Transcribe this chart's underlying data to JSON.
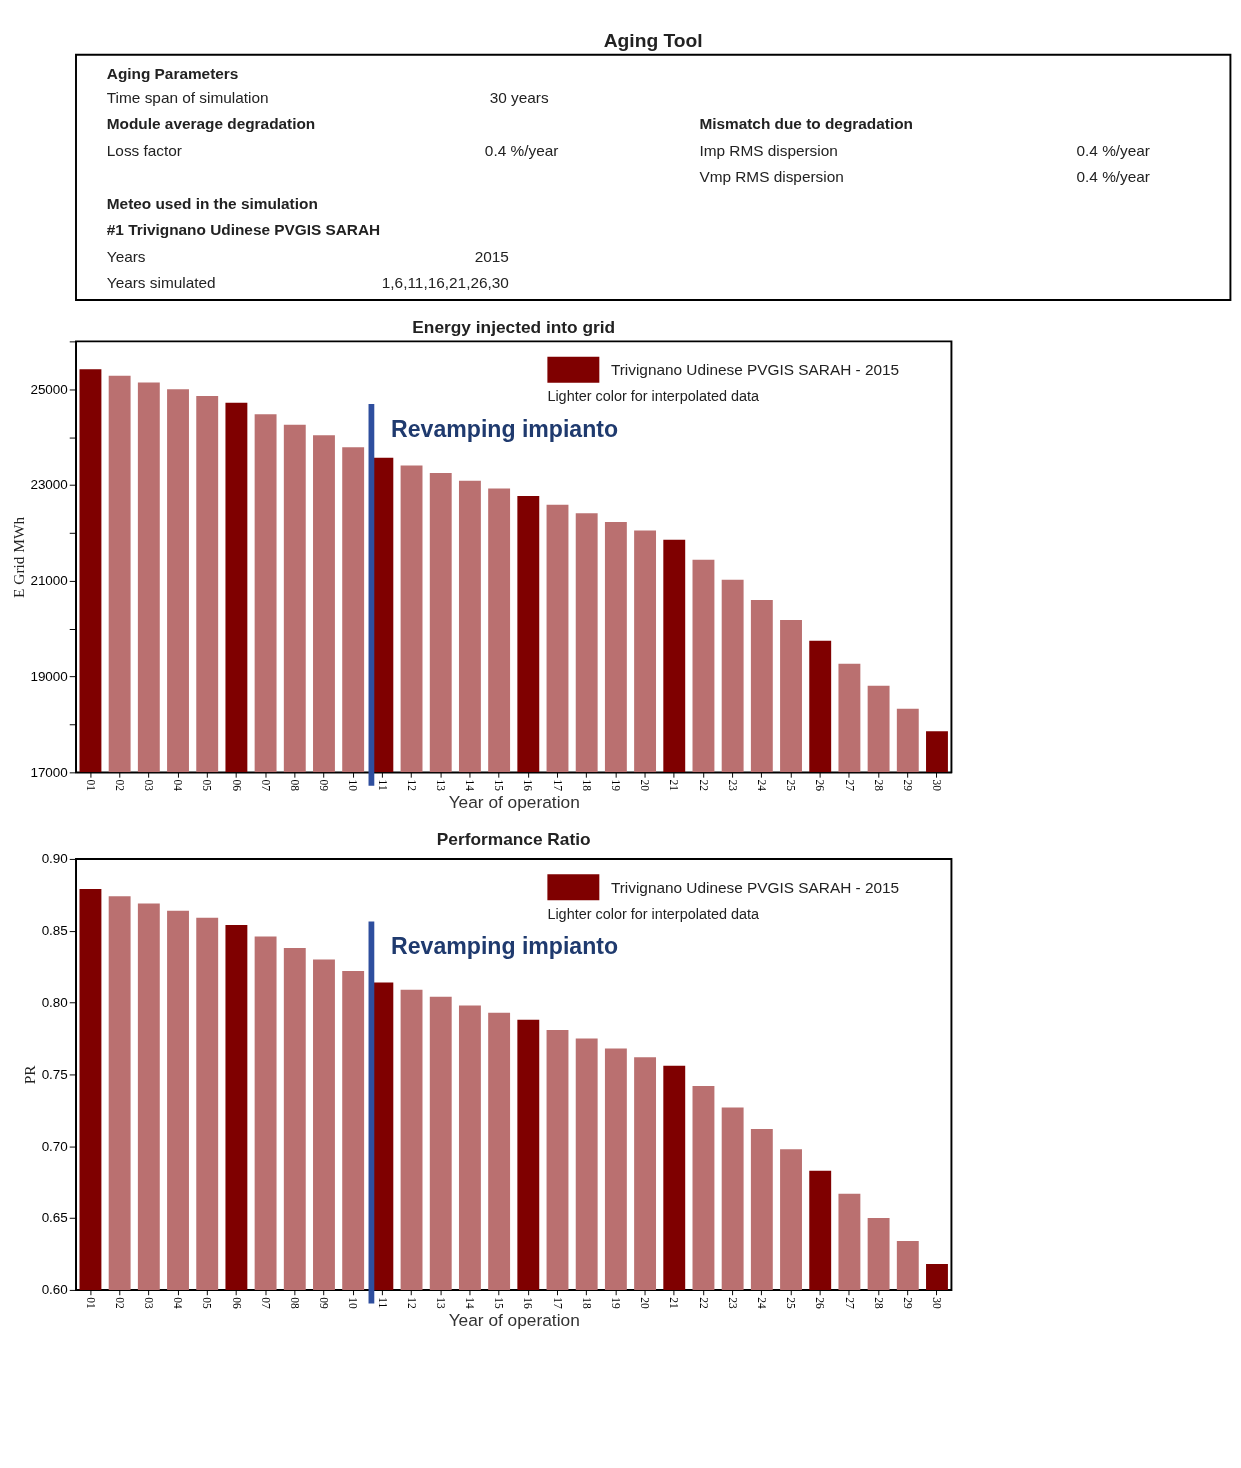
{
  "chart_data": [
    {
      "type": "other",
      "title": "Aging Tool",
      "annotations": [
        "Aging Parameters",
        "Time span of simulation",
        "30 years",
        "Module average degradation",
        "Loss factor",
        "0.4 %/year",
        "Mismatch due to degradation",
        "Imp RMS dispersion",
        "0.4 %/year",
        "Vmp RMS dispersion",
        "0.4 %/year",
        "Meteo used in the simulation",
        "#1 Trivignano Udinese PVGIS SARAH",
        "Years",
        "2015",
        "Years simulated",
        "1,6,11,16,21,26,30"
      ]
    },
    {
      "type": "bar",
      "title": "Energy injected into grid",
      "xlabel": "Year of operation",
      "ylabel": "E Grid MWh",
      "categories": [
        "01",
        "02",
        "03",
        "04",
        "05",
        "06",
        "07",
        "08",
        "09",
        "10",
        "11",
        "12",
        "13",
        "14",
        "15",
        "16",
        "17",
        "18",
        "19",
        "20",
        "21",
        "22",
        "23",
        "24",
        "25",
        "26",
        "27",
        "28",
        "29",
        "30"
      ],
      "series": [
        {
          "name": "Trivignano Udinese PVGIS SARAH  - 2015",
          "color": "#7f0000",
          "values": [
            25420,
            25280,
            25140,
            25000,
            24860,
            24720,
            24480,
            24260,
            24040,
            23790,
            23570,
            23410,
            23250,
            23090,
            22930,
            22770,
            22590,
            22410,
            22230,
            22050,
            21860,
            21440,
            21020,
            20600,
            20180,
            19750,
            19270,
            18810,
            18330,
            17860
          ],
          "colors": [
            "#7f0000",
            "#ba7070",
            "#ba7070",
            "#ba7070",
            "#ba7070",
            "#7f0000",
            "#ba7070",
            "#ba7070",
            "#ba7070",
            "#ba7070",
            "#7f0000",
            "#ba7070",
            "#ba7070",
            "#ba7070",
            "#ba7070",
            "#7f0000",
            "#ba7070",
            "#ba7070",
            "#ba7070",
            "#ba7070",
            "#7f0000",
            "#ba7070",
            "#ba7070",
            "#ba7070",
            "#ba7070",
            "#7f0000",
            "#ba7070",
            "#ba7070",
            "#ba7070",
            "#7f0000"
          ]
        }
      ],
      "ylim": [
        17000,
        26000
      ],
      "yticks": [
        17000,
        {
          "value": 18000,
          "label": null
        },
        19000,
        {
          "value": 20000,
          "label": null
        },
        21000,
        {
          "value": 22000,
          "label": null
        },
        23000,
        {
          "value": 24000,
          "label": null
        },
        25000,
        {
          "value": 26000,
          "label": null
        }
      ],
      "ref_lines": [
        {
          "axis": "x",
          "value": "11",
          "label": "Revamping impianto",
          "color": "#2e4e9e"
        }
      ],
      "annotations": [
        "Lighter color for interpolated data"
      ],
      "legend": "top right",
      "grid": false
    },
    {
      "type": "bar",
      "title": "Performance Ratio",
      "xlabel": "Year of operation",
      "ylabel": "PR",
      "categories": [
        "01",
        "02",
        "03",
        "04",
        "05",
        "06",
        "07",
        "08",
        "09",
        "10",
        "11",
        "12",
        "13",
        "14",
        "15",
        "16",
        "17",
        "18",
        "19",
        "20",
        "21",
        "22",
        "23",
        "24",
        "25",
        "26",
        "27",
        "28",
        "29",
        "30"
      ],
      "series": [
        {
          "name": "Trivignano Udinese PVGIS SARAH  - 2015",
          "color": "#7f0000",
          "values": [
            0.879,
            0.874,
            0.869,
            0.864,
            0.859,
            0.854,
            0.846,
            0.838,
            0.83,
            0.822,
            0.814,
            0.809,
            0.804,
            0.798,
            0.793,
            0.788,
            0.781,
            0.775,
            0.768,
            0.762,
            0.756,
            0.742,
            0.727,
            0.712,
            0.698,
            0.683,
            0.667,
            0.65,
            0.634,
            0.618
          ],
          "colors": [
            "#7f0000",
            "#ba7070",
            "#ba7070",
            "#ba7070",
            "#ba7070",
            "#7f0000",
            "#ba7070",
            "#ba7070",
            "#ba7070",
            "#ba7070",
            "#7f0000",
            "#ba7070",
            "#ba7070",
            "#ba7070",
            "#ba7070",
            "#7f0000",
            "#ba7070",
            "#ba7070",
            "#ba7070",
            "#ba7070",
            "#7f0000",
            "#ba7070",
            "#ba7070",
            "#ba7070",
            "#ba7070",
            "#7f0000",
            "#ba7070",
            "#ba7070",
            "#ba7070",
            "#7f0000"
          ]
        }
      ],
      "ylim": [
        0.6,
        0.9
      ],
      "yticks": [
        {
          "value": 0.6,
          "label": "0.60"
        },
        {
          "value": 0.65,
          "label": "0.65"
        },
        {
          "value": 0.7,
          "label": "0.70"
        },
        {
          "value": 0.75,
          "label": "0.75"
        },
        {
          "value": 0.8,
          "label": "0.80"
        },
        {
          "value": 0.85,
          "label": "0.85"
        },
        {
          "value": 0.9,
          "label": "0.90"
        }
      ],
      "ref_lines": [
        {
          "axis": "x",
          "value": "11",
          "label": "Revamping impianto",
          "color": "#2e4e9e"
        }
      ],
      "annotations": [
        "Lighter color for interpolated data"
      ],
      "legend": "top right",
      "grid": false
    }
  ]
}
